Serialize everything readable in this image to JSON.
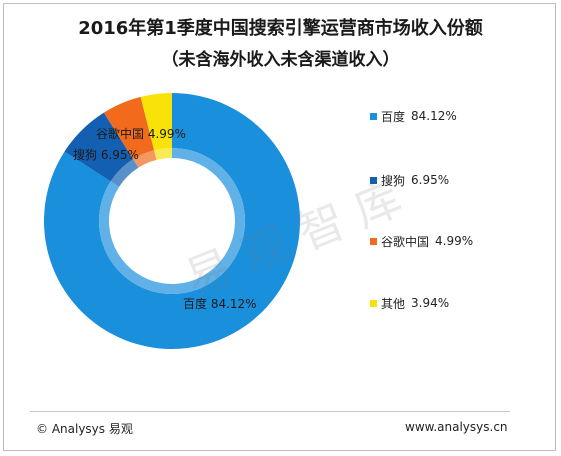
{
  "title_line1": "2016年第1季度中国搜索引擎运营商市场收入份额",
  "title_line2": "（未含海外收入未含渠道收入）",
  "watermark": "易 观 智 库",
  "footer": {
    "left": "© Analysys 易观",
    "right": "www.analysys.cn"
  },
  "chart_data": {
    "type": "pie",
    "title": "2016年第1季度中国搜索引擎运营商市场收入份额",
    "subtitle": "（未含海外收入未含渠道收入）",
    "categories": [
      "百度",
      "搜狗",
      "谷歌中国",
      "其他"
    ],
    "values": [
      84.12,
      6.95,
      4.99,
      3.94
    ],
    "value_labels": [
      "84.12%",
      "6.95%",
      "4.99%",
      "3.94%"
    ],
    "colors": [
      "#1a8fdc",
      "#1360b3",
      "#f26b1d",
      "#f9e208"
    ],
    "style": "donut",
    "legend_position": "right"
  }
}
